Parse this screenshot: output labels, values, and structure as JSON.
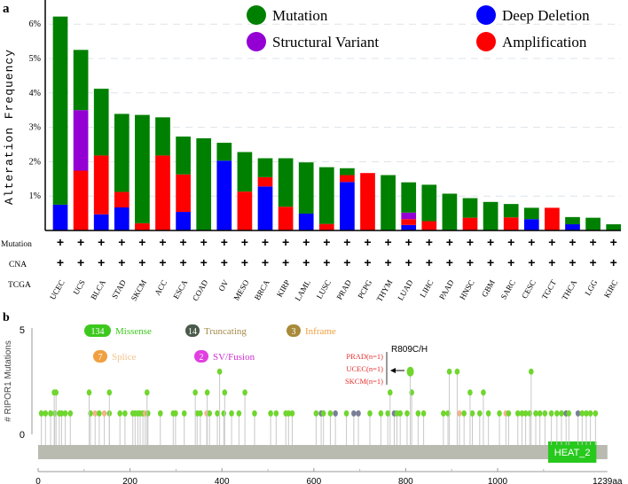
{
  "chart_data": [
    {
      "type": "bar",
      "stacked": true,
      "panel_label": "a",
      "ylabel": "Alteration Frequency",
      "ylim": [
        0,
        6.5
      ],
      "yticks": [
        "1%",
        "2%",
        "3%",
        "4%",
        "5%",
        "6%"
      ],
      "grid": true,
      "legend_position": "top-right",
      "legend": [
        {
          "name": "Mutation",
          "color": "#008000"
        },
        {
          "name": "Deep Deletion",
          "color": "#0000ff"
        },
        {
          "name": "Structural Variant",
          "color": "#9400d3"
        },
        {
          "name": "Amplification",
          "color": "#ff0000"
        }
      ],
      "row_labels": {
        "mutation": "Mutation",
        "cna": "CNA",
        "tcga": "TCGA"
      },
      "row_mark": "+",
      "categories": [
        "UCEC",
        "UCS",
        "BLCA",
        "STAD",
        "SKCM",
        "ACC",
        "ESCA",
        "COAD",
        "OV",
        "MESO",
        "BRCA",
        "KIRP",
        "LAML",
        "LUSC",
        "PRAD",
        "PCPG",
        "THYM",
        "LUAD",
        "LIHC",
        "PAAD",
        "HNSC",
        "GBM",
        "SARC",
        "CESC",
        "TGCT",
        "THCA",
        "LGG",
        "KIRC"
      ],
      "series": [
        {
          "name": "Deep Deletion",
          "values": [
            0.75,
            0,
            0.47,
            0.67,
            0,
            0,
            0.54,
            0,
            2.03,
            0,
            1.28,
            0,
            0.49,
            0,
            1.41,
            0,
            0,
            0.16,
            0,
            0,
            0,
            0,
            0,
            0.33,
            0,
            0.18,
            0,
            0
          ]
        },
        {
          "name": "Amplification",
          "values": [
            0,
            1.74,
            1.71,
            0.45,
            0.21,
            2.18,
            1.09,
            0,
            0,
            1.13,
            0.27,
            0.69,
            0,
            0.19,
            0.2,
            1.67,
            0,
            0.17,
            0.27,
            0,
            0.37,
            0,
            0.38,
            0,
            0.66,
            0,
            0,
            0
          ]
        },
        {
          "name": "Structural Variant",
          "values": [
            0,
            1.76,
            0,
            0,
            0,
            0,
            0,
            0,
            0,
            0,
            0,
            0,
            0,
            0,
            0,
            0,
            0,
            0.19,
            0,
            0,
            0,
            0,
            0,
            0,
            0,
            0,
            0,
            0
          ]
        },
        {
          "name": "Mutation",
          "values": [
            5.47,
            1.75,
            1.94,
            2.27,
            3.15,
            1.11,
            1.1,
            2.68,
            0.52,
            1.15,
            0.55,
            1.41,
            1.49,
            1.65,
            0.2,
            0,
            1.61,
            0.88,
            1.06,
            1.07,
            0.57,
            0.83,
            0.39,
            0.33,
            0,
            0.21,
            0.37,
            0.18
          ]
        }
      ]
    },
    {
      "type": "scatter",
      "subtype": "lollipop",
      "panel_label": "b",
      "ylabel": "# RIPOR1 Mutations",
      "ylim": [
        0,
        5
      ],
      "yticks": [
        "0",
        "5"
      ],
      "xlim": [
        0,
        1239
      ],
      "xticks": [
        "0",
        "200",
        "400",
        "600",
        "800",
        "1000",
        "1239aa"
      ],
      "legend": [
        {
          "count": "134",
          "name": "Missense",
          "color": "#3dc81e",
          "text_color": "#3dc81e"
        },
        {
          "count": "14",
          "name": "Truncating",
          "color": "#4a5a4a",
          "text_color": "#a58b4a"
        },
        {
          "count": "3",
          "name": "Inframe",
          "color": "#a98a3a",
          "text_color": "#f0a040"
        },
        {
          "count": "7",
          "name": "Splice",
          "color": "#f0a040",
          "text_color": "#f2c48a"
        },
        {
          "count": "2",
          "name": "SV/Fusion",
          "color": "#e040e0",
          "text_color": "#d030d0"
        }
      ],
      "domain": {
        "name": "HEAT_2",
        "start": 1110,
        "end": 1215,
        "color": "#27c91d"
      },
      "annotation": {
        "label": "R809C/H",
        "position": 810,
        "count": 3,
        "details": [
          "PRAD(n=1)",
          "UCEC(n=1)",
          "SKCM(n=1)"
        ]
      },
      "points": [
        [
          7,
          1,
          "m"
        ],
        [
          16,
          1,
          "m"
        ],
        [
          27,
          1,
          "m"
        ],
        [
          36,
          1,
          "m"
        ],
        [
          46,
          1,
          "m"
        ],
        [
          51,
          1,
          "m"
        ],
        [
          59,
          1,
          "m"
        ],
        [
          70,
          1,
          "m"
        ],
        [
          114,
          1,
          "m"
        ],
        [
          124,
          1,
          "s"
        ],
        [
          133,
          1,
          "m"
        ],
        [
          144,
          1,
          "s"
        ],
        [
          155,
          1,
          "m"
        ],
        [
          178,
          1,
          "m"
        ],
        [
          189,
          1,
          "m"
        ],
        [
          206,
          1,
          "m"
        ],
        [
          211,
          1,
          "m"
        ],
        [
          217,
          1,
          "m"
        ],
        [
          222,
          1,
          "m"
        ],
        [
          228,
          1,
          "m"
        ],
        [
          233,
          1,
          "s"
        ],
        [
          239,
          1,
          "m"
        ],
        [
          266,
          1,
          "m"
        ],
        [
          294,
          1,
          "m"
        ],
        [
          299,
          1,
          "m"
        ],
        [
          318,
          1,
          "m"
        ],
        [
          346,
          1,
          "m"
        ],
        [
          353,
          1,
          "m"
        ],
        [
          367,
          1,
          "s"
        ],
        [
          373,
          1,
          "m"
        ],
        [
          390,
          1,
          "m"
        ],
        [
          404,
          1,
          "m"
        ],
        [
          421,
          1,
          "m"
        ],
        [
          437,
          1,
          "m"
        ],
        [
          471,
          1,
          "m"
        ],
        [
          506,
          1,
          "m"
        ],
        [
          518,
          1,
          "m"
        ],
        [
          539,
          1,
          "m"
        ],
        [
          545,
          1,
          "m"
        ],
        [
          553,
          1,
          "m"
        ],
        [
          605,
          1,
          "m"
        ],
        [
          616,
          1,
          "t"
        ],
        [
          621,
          1,
          "m"
        ],
        [
          636,
          1,
          "m"
        ],
        [
          647,
          1,
          "t"
        ],
        [
          671,
          1,
          "m"
        ],
        [
          687,
          1,
          "t"
        ],
        [
          697,
          1,
          "t"
        ],
        [
          722,
          1,
          "m"
        ],
        [
          746,
          1,
          "m"
        ],
        [
          761,
          1,
          "m"
        ],
        [
          775,
          1,
          "t"
        ],
        [
          781,
          1,
          "m"
        ],
        [
          788,
          1,
          "m"
        ],
        [
          803,
          1,
          "m"
        ],
        [
          827,
          1,
          "m"
        ],
        [
          839,
          1,
          "m"
        ],
        [
          882,
          1,
          "m"
        ],
        [
          892,
          1,
          "m"
        ],
        [
          917,
          1,
          "s"
        ],
        [
          927,
          1,
          "m"
        ],
        [
          945,
          1,
          "m"
        ],
        [
          961,
          1,
          "m"
        ],
        [
          980,
          1,
          "m"
        ],
        [
          1004,
          1,
          "m"
        ],
        [
          1018,
          1,
          "s"
        ],
        [
          1024,
          1,
          "m"
        ],
        [
          1044,
          1,
          "m"
        ],
        [
          1053,
          1,
          "m"
        ],
        [
          1061,
          1,
          "m"
        ],
        [
          1070,
          1,
          "m"
        ],
        [
          1083,
          1,
          "m"
        ],
        [
          1092,
          1,
          "m"
        ],
        [
          1103,
          1,
          "m"
        ],
        [
          1117,
          1,
          "m"
        ],
        [
          1129,
          1,
          "m"
        ],
        [
          1139,
          1,
          "m"
        ],
        [
          1149,
          1,
          "t"
        ],
        [
          1155,
          1,
          "m"
        ],
        [
          1175,
          1,
          "t"
        ],
        [
          1184,
          1,
          "m"
        ],
        [
          1193,
          1,
          "m"
        ],
        [
          1202,
          1,
          "m"
        ],
        [
          1213,
          1,
          "m"
        ],
        [
          35,
          2,
          "m"
        ],
        [
          39,
          2,
          "m"
        ],
        [
          111,
          2,
          "m"
        ],
        [
          155,
          2,
          "m"
        ],
        [
          237,
          2,
          "m"
        ],
        [
          342,
          2,
          "m"
        ],
        [
          368,
          2,
          "m"
        ],
        [
          406,
          2,
          "m"
        ],
        [
          450,
          2,
          "m"
        ],
        [
          766,
          2,
          "m"
        ],
        [
          813,
          2,
          "m"
        ],
        [
          940,
          2,
          "m"
        ],
        [
          969,
          2,
          "m"
        ],
        [
          395,
          3,
          "m"
        ],
        [
          810,
          3,
          "big"
        ],
        [
          895,
          3,
          "m"
        ],
        [
          912,
          3,
          "m"
        ],
        [
          1073,
          3,
          "m"
        ]
      ]
    }
  ]
}
